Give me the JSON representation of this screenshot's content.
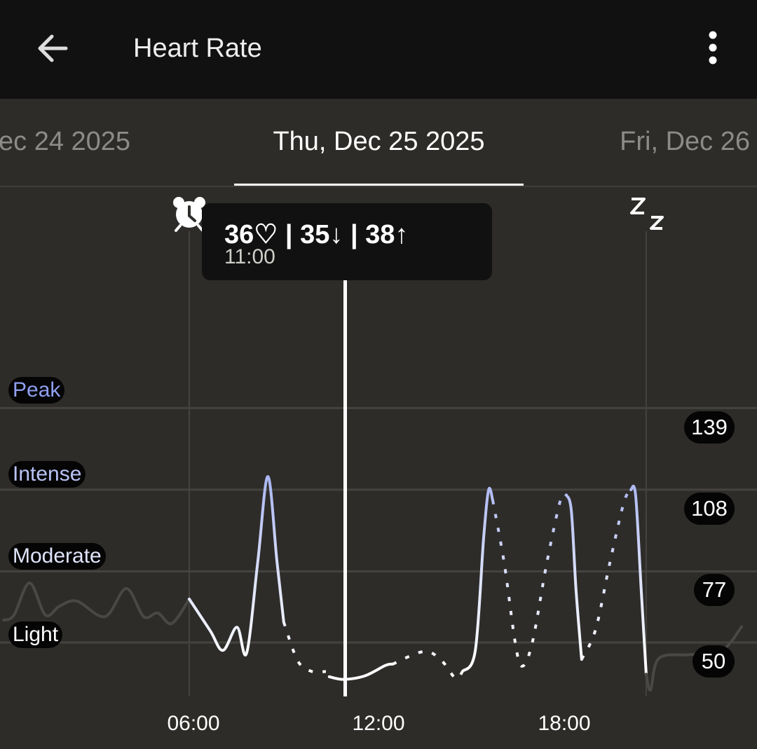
{
  "header": {
    "title": "Heart Rate",
    "back_icon": "arrow-left-icon",
    "menu_icon": "more-vertical-icon"
  },
  "dates": {
    "previous": "ec 24 2025",
    "current": "Thu, Dec 25 2025",
    "next": "Fri, Dec 26"
  },
  "tooltip": {
    "avg": "36",
    "avg_icon": "heart-outline-icon",
    "min": "35",
    "min_icon": "arrow-down-icon",
    "max": "38",
    "max_icon": "arrow-up-icon",
    "sep": "|",
    "time": "11:00"
  },
  "markers": {
    "wake_icon": "alarm-clock-icon",
    "sleep_icon": "sleep-zz-icon"
  },
  "zones": [
    {
      "label": "Peak",
      "color": "#8f9ff0"
    },
    {
      "label": "Intense",
      "color": "#b9c3f6"
    },
    {
      "label": "Moderate",
      "color": "#dfe4fb"
    },
    {
      "label": "Light",
      "color": "#ffffff"
    }
  ],
  "chart_data": {
    "type": "line",
    "x_unit": "hour of day",
    "xlim": [
      0,
      24.2
    ],
    "x_ticks": [
      {
        "h": 6,
        "label": "06:00"
      },
      {
        "h": 12,
        "label": "12:00"
      },
      {
        "h": 18,
        "label": "18:00"
      }
    ],
    "y_ticks": [
      139,
      108,
      77,
      50
    ],
    "ylim": [
      30,
      151
    ],
    "grid": true,
    "cursor_hour": 11,
    "wake_hour": 6,
    "sleep_hour": 20.65,
    "segments": [
      {
        "style": "inactive",
        "points": [
          [
            0.05,
            58.5
          ],
          [
            0.38,
            60.4
          ],
          [
            0.88,
            72.6
          ],
          [
            1.39,
            60.4
          ],
          [
            1.84,
            63.8
          ],
          [
            2.4,
            65.7
          ],
          [
            3.3,
            59.8
          ],
          [
            3.98,
            70.5
          ],
          [
            4.54,
            59.8
          ],
          [
            4.99,
            61.2
          ],
          [
            5.44,
            57.2
          ],
          [
            6.0,
            66.5
          ]
        ]
      },
      {
        "style": "solid",
        "points": [
          [
            6.0,
            66.5
          ],
          [
            6.67,
            54.5
          ],
          [
            7.08,
            47
          ],
          [
            7.53,
            55.8
          ],
          [
            7.84,
            46
          ],
          [
            8.2,
            81
          ],
          [
            8.52,
            113
          ],
          [
            8.81,
            81
          ],
          [
            9.03,
            57.7
          ]
        ]
      },
      {
        "style": "dotted",
        "points": [
          [
            9.03,
            57.7
          ],
          [
            9.48,
            43
          ],
          [
            9.93,
            39
          ],
          [
            10.38,
            39
          ]
        ]
      },
      {
        "style": "solid",
        "points": [
          [
            10.49,
            37
          ],
          [
            10.94,
            36
          ],
          [
            11.62,
            37.3
          ],
          [
            12.29,
            41.3
          ],
          [
            12.52,
            41.8
          ]
        ]
      },
      {
        "style": "dotted",
        "points": [
          [
            12.52,
            41.8
          ],
          [
            13.53,
            46.6
          ],
          [
            14.09,
            43.1
          ],
          [
            14.54,
            36.4
          ],
          [
            14.76,
            39
          ]
        ]
      },
      {
        "style": "solid",
        "points": [
          [
            14.76,
            39
          ],
          [
            15.17,
            46.9
          ],
          [
            15.44,
            90
          ],
          [
            15.6,
            108
          ],
          [
            15.73,
            104
          ]
        ]
      },
      {
        "style": "dotted",
        "points": [
          [
            15.73,
            104
          ],
          [
            16.1,
            80
          ],
          [
            16.45,
            50
          ],
          [
            16.67,
            41
          ],
          [
            17.0,
            50
          ],
          [
            17.46,
            80
          ],
          [
            17.9,
            104
          ],
          [
            18.09,
            106
          ]
        ]
      },
      {
        "style": "solid",
        "points": [
          [
            18.09,
            106
          ],
          [
            18.25,
            100
          ],
          [
            18.4,
            70
          ],
          [
            18.58,
            43.6
          ]
        ]
      },
      {
        "style": "dotted",
        "points": [
          [
            18.58,
            43.6
          ],
          [
            19.03,
            55
          ],
          [
            19.48,
            80
          ],
          [
            19.93,
            103
          ],
          [
            20.16,
            108
          ]
        ]
      },
      {
        "style": "solid",
        "points": [
          [
            20.16,
            108
          ],
          [
            20.31,
            106
          ],
          [
            20.49,
            70
          ],
          [
            20.65,
            38
          ]
        ]
      },
      {
        "style": "inactive",
        "points": [
          [
            20.65,
            38
          ],
          [
            20.79,
            32
          ],
          [
            21.06,
            44
          ],
          [
            22.07,
            45.4
          ],
          [
            23.08,
            47
          ],
          [
            23.71,
            56
          ]
        ]
      }
    ]
  }
}
